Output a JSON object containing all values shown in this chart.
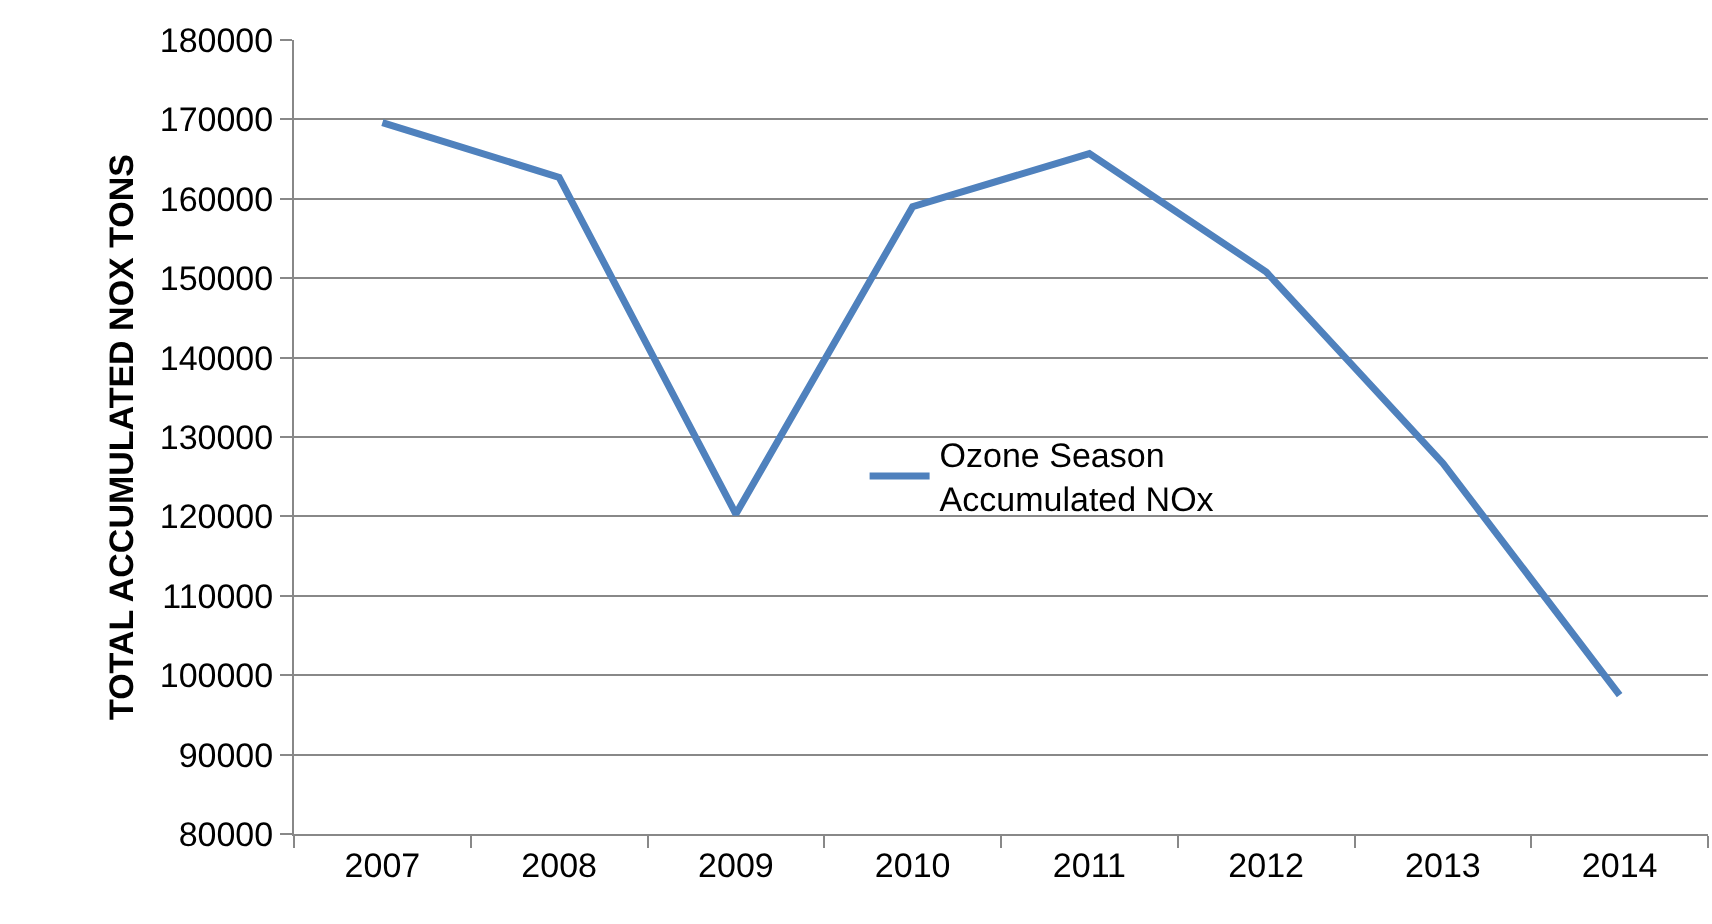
{
  "chart_data": {
    "type": "line",
    "ylabel": "TOTAL ACCUMULATED NOX TONS",
    "categories": [
      "2007",
      "2008",
      "2009",
      "2010",
      "2011",
      "2012",
      "2013",
      "2014"
    ],
    "series": [
      {
        "name": "Ozone Season Accumulated NOx",
        "color": "#4f81bd",
        "values": [
          169600,
          162700,
          120300,
          159000,
          165700,
          150800,
          126700,
          97500
        ]
      }
    ],
    "ylim": [
      80000,
      180000
    ],
    "yticks": [
      80000,
      90000,
      100000,
      110000,
      120000,
      130000,
      140000,
      150000,
      160000,
      170000,
      180000
    ],
    "grid": "y",
    "legend": "center",
    "marker": "none",
    "line_style": "solid"
  }
}
